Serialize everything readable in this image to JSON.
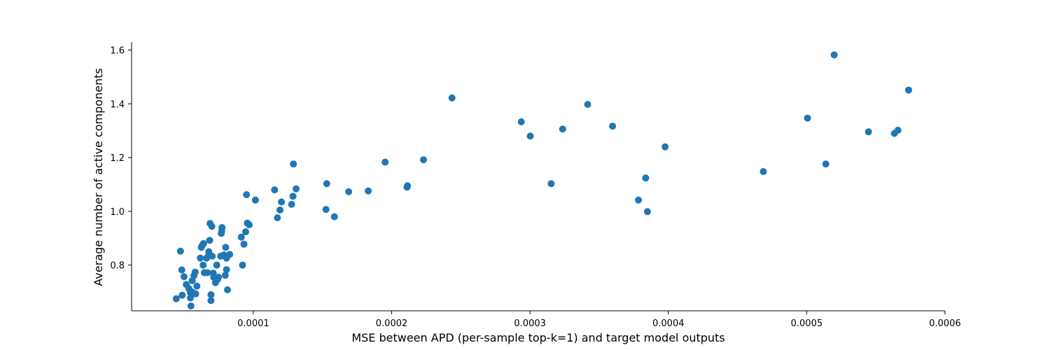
{
  "chart_data": {
    "type": "scatter",
    "title": "",
    "xlabel": "MSE between APD (per-sample top-k=1) and target model outputs",
    "ylabel": "Average number of active components",
    "xlim": [
      1.2e-05,
      0.0006
    ],
    "ylim": [
      0.63,
      1.63
    ],
    "xticks": [
      0.0001,
      0.0002,
      0.0003,
      0.0004,
      0.0005,
      0.0006
    ],
    "xtick_labels": [
      "0.0001",
      "0.0002",
      "0.0003",
      "0.0004",
      "0.0005",
      "0.0006"
    ],
    "yticks": [
      0.8,
      1.0,
      1.2,
      1.4,
      1.6
    ],
    "ytick_labels": [
      "0.8",
      "1.0",
      "1.2",
      "1.4",
      "1.6"
    ],
    "grid": false,
    "legend": "none",
    "color": "#1f77b4",
    "series": [
      {
        "points": [
          [
            4.43e-05,
            0.675
          ],
          [
            4.73e-05,
            0.852
          ],
          [
            4.83e-05,
            0.782
          ],
          [
            4.86e-05,
            0.688
          ],
          [
            4.99e-05,
            0.757
          ],
          [
            5.15e-05,
            0.728
          ],
          [
            5.34e-05,
            0.713
          ],
          [
            5.45e-05,
            0.698
          ],
          [
            5.45e-05,
            0.678
          ],
          [
            5.58e-05,
            0.742
          ],
          [
            5.49e-05,
            0.648
          ],
          [
            5.58e-05,
            0.7
          ],
          [
            5.71e-05,
            0.761
          ],
          [
            5.8e-05,
            0.774
          ],
          [
            5.83e-05,
            0.693
          ],
          [
            5.92e-05,
            0.722
          ],
          [
            6.17e-05,
            0.826
          ],
          [
            6.24e-05,
            0.866
          ],
          [
            6.3e-05,
            0.873
          ],
          [
            6.37e-05,
            0.8
          ],
          [
            6.4e-05,
            0.88
          ],
          [
            6.46e-05,
            0.772
          ],
          [
            6.62e-05,
            0.826
          ],
          [
            6.68e-05,
            0.772
          ],
          [
            6.75e-05,
            0.835
          ],
          [
            6.78e-05,
            0.85
          ],
          [
            6.84e-05,
            0.892
          ],
          [
            6.87e-05,
            0.955
          ],
          [
            6.94e-05,
            0.69
          ],
          [
            6.94e-05,
            0.668
          ],
          [
            7e-05,
            0.944
          ],
          [
            7.03e-05,
            0.833
          ],
          [
            7.1e-05,
            0.77
          ],
          [
            7.13e-05,
            0.755
          ],
          [
            7.26e-05,
            0.735
          ],
          [
            7.36e-05,
            0.8
          ],
          [
            7.42e-05,
            0.747
          ],
          [
            7.48e-05,
            0.755
          ],
          [
            7.64e-05,
            0.833
          ],
          [
            7.68e-05,
            0.918
          ],
          [
            7.71e-05,
            0.928
          ],
          [
            7.74e-05,
            0.94
          ],
          [
            7.87e-05,
            0.838
          ],
          [
            7.97e-05,
            0.762
          ],
          [
            8e-05,
            0.866
          ],
          [
            8.06e-05,
            0.783
          ],
          [
            8.06e-05,
            0.826
          ],
          [
            8.13e-05,
            0.708
          ],
          [
            8.29e-05,
            0.84
          ],
          [
            9.13e-05,
            0.904
          ],
          [
            9.22e-05,
            0.8
          ],
          [
            9.32e-05,
            0.878
          ],
          [
            9.45e-05,
            0.924
          ],
          [
            9.51e-05,
            1.062
          ],
          [
            9.57e-05,
            0.956
          ],
          [
            9.7e-05,
            0.95
          ],
          [
            0.0001015,
            1.042
          ],
          [
            0.0001154,
            1.08
          ],
          [
            0.0001174,
            0.976
          ],
          [
            0.0001193,
            1.005
          ],
          [
            0.0001203,
            1.035
          ],
          [
            0.0001277,
            1.026
          ],
          [
            0.0001287,
            1.056
          ],
          [
            0.000129,
            1.176
          ],
          [
            0.0001309,
            1.084
          ],
          [
            0.0001525,
            1.007
          ],
          [
            0.0001531,
            1.103
          ],
          [
            0.0001586,
            0.98
          ],
          [
            0.0001689,
            1.073
          ],
          [
            0.0001831,
            1.076
          ],
          [
            0.0001953,
            1.183
          ],
          [
            0.0002111,
            1.09
          ],
          [
            0.0002114,
            1.095
          ],
          [
            0.000223,
            1.192
          ],
          [
            0.0002436,
            1.422
          ],
          [
            0.0002937,
            1.333
          ],
          [
            0.0003002,
            1.28
          ],
          [
            0.0003153,
            1.103
          ],
          [
            0.0003236,
            1.306
          ],
          [
            0.0003417,
            1.398
          ],
          [
            0.0003597,
            1.317
          ],
          [
            0.0003784,
            1.042
          ],
          [
            0.0003836,
            1.124
          ],
          [
            0.0003849,
            0.999
          ],
          [
            0.0003977,
            1.24
          ],
          [
            0.0004687,
            1.148
          ],
          [
            0.0005006,
            1.347
          ],
          [
            0.0005138,
            1.176
          ],
          [
            0.0005199,
            1.582
          ],
          [
            0.0005447,
            1.296
          ],
          [
            0.0005634,
            1.29
          ],
          [
            0.000566,
            1.302
          ],
          [
            0.0005737,
            1.451
          ]
        ]
      }
    ]
  }
}
